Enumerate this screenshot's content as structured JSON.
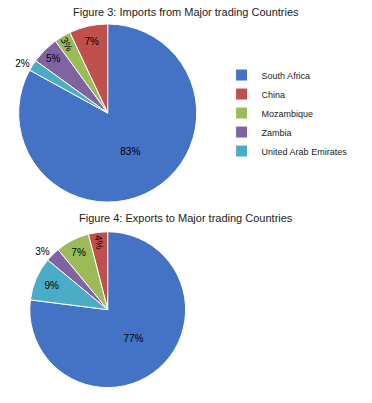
{
  "chart_data": [
    {
      "type": "pie",
      "title": "Figure 3: Imports from Major trading Countries",
      "categories": [
        "South Africa",
        "China",
        "Mozambique",
        "Zambia",
        "United Arab Emirates"
      ],
      "values": [
        83,
        7,
        3,
        5,
        2
      ],
      "value_labels": [
        "83%",
        "7%",
        "3%",
        "5%",
        "2%"
      ],
      "colors": [
        "#4472C4",
        "#C0504D",
        "#9BBB59",
        "#8064A2",
        "#4BACC6"
      ],
      "data_labels": true,
      "legend": "right"
    },
    {
      "type": "pie",
      "title": "Figure 4: Exports to Major trading Countries",
      "categories": [
        "South Africa",
        "China",
        "Mozambique",
        "Zambia",
        "United Arab Emirates"
      ],
      "values": [
        77,
        4,
        7,
        3,
        9
      ],
      "value_labels": [
        "77%",
        "4%",
        "7%",
        "3%",
        "9%"
      ],
      "colors": [
        "#4472C4",
        "#C0504D",
        "#9BBB59",
        "#8064A2",
        "#4BACC6"
      ],
      "data_labels": true,
      "legend": "right"
    }
  ]
}
